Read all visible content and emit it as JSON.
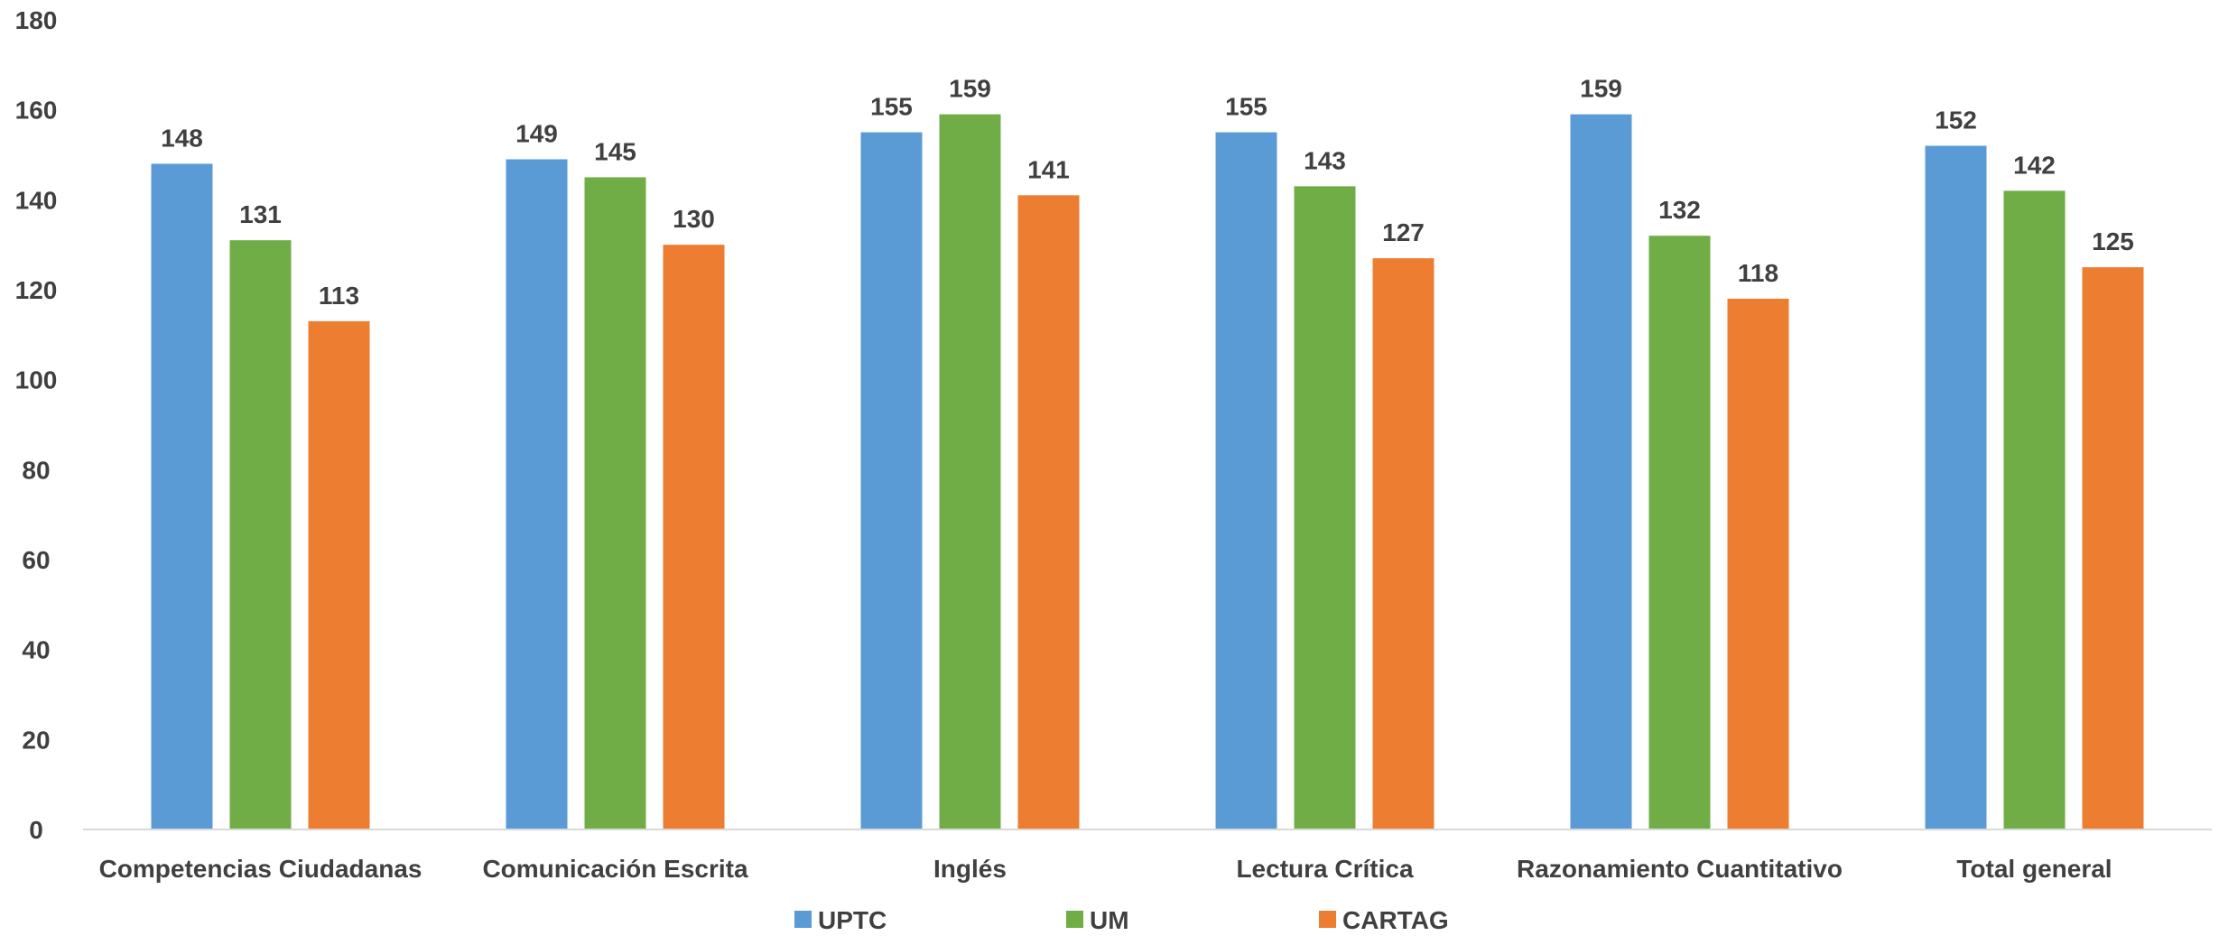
{
  "chart_data": {
    "type": "bar",
    "title": "",
    "xlabel": "",
    "ylabel": "",
    "ylim": [
      0,
      180
    ],
    "yticks": [
      0,
      20,
      40,
      60,
      80,
      100,
      120,
      140,
      160,
      180
    ],
    "grid": false,
    "legend_position": "bottom",
    "data_labels": true,
    "categories": [
      "Competencias Ciudadanas",
      "Comunicación Escrita",
      "Inglés",
      "Lectura Crítica",
      "Razonamiento Cuantitativo",
      "Total general"
    ],
    "series": [
      {
        "name": "UPTC",
        "color": "#5B9BD5",
        "values": [
          148,
          149,
          155,
          155,
          159,
          152
        ]
      },
      {
        "name": "UM",
        "color": "#70AD47",
        "values": [
          131,
          145,
          159,
          143,
          132,
          142
        ]
      },
      {
        "name": "CARTAG",
        "color": "#ED7D31",
        "values": [
          113,
          130,
          141,
          127,
          118,
          125
        ]
      }
    ]
  }
}
